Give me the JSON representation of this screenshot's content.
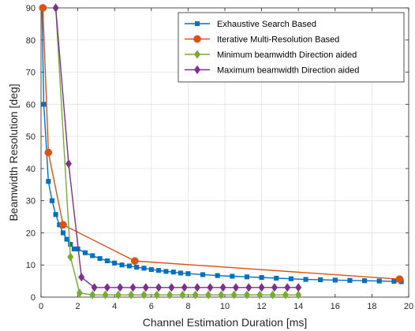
{
  "chart_data": {
    "type": "line",
    "title": "",
    "xlabel": "Channel Estimation Duration [ms]",
    "ylabel": "Beamwidth Resolution [deg]",
    "xlim": [
      0,
      20
    ],
    "ylim": [
      0,
      90
    ],
    "xticks": [
      "0",
      "2",
      "4",
      "6",
      "8",
      "10",
      "12",
      "14",
      "16",
      "18",
      "20"
    ],
    "yticks": [
      "0",
      "10",
      "20",
      "30",
      "40",
      "50",
      "60",
      "70",
      "80",
      "90"
    ],
    "grid": true,
    "legend_position": "top-right",
    "series": [
      {
        "name": "Exhaustive Search Based",
        "color": "#0072BD",
        "marker": "square",
        "x": [
          0.05,
          0.15,
          0.4,
          0.6,
          0.8,
          1.0,
          1.2,
          1.4,
          1.6,
          1.8,
          2.0,
          2.4,
          2.8,
          3.2,
          3.6,
          4.0,
          4.4,
          4.8,
          5.2,
          5.6,
          6.0,
          6.4,
          6.8,
          7.2,
          7.6,
          8.0,
          8.8,
          9.6,
          10.4,
          11.2,
          12.0,
          12.8,
          13.6,
          14.4,
          15.2,
          16.0,
          16.8,
          17.6,
          18.4,
          19.2,
          19.6
        ],
        "y": [
          90,
          60,
          36,
          30,
          25.7,
          22.5,
          20,
          18,
          16.4,
          15,
          15,
          13.8,
          12.9,
          12,
          11.3,
          10.6,
          10,
          9.7,
          9.3,
          9.0,
          8.6,
          8.3,
          8.0,
          7.8,
          7.5,
          7.3,
          7.0,
          6.7,
          6.5,
          6.3,
          6.1,
          5.9,
          5.7,
          5.5,
          5.4,
          5.3,
          5.2,
          5.1,
          5.0,
          4.9,
          4.8
        ]
      },
      {
        "name": "Iterative Multi-Resolution Based",
        "color": "#D95319",
        "marker": "circle",
        "x": [
          0.1,
          0.4,
          1.2,
          5.1,
          19.5
        ],
        "y": [
          90,
          45,
          22.5,
          11.25,
          5.6
        ]
      },
      {
        "name": "Minimum beamwidth Direction aided",
        "color": "#77AC30",
        "marker": "diamond",
        "x": [
          0.8,
          1.6,
          2.1,
          2.8,
          3.5,
          4.2,
          4.9,
          5.6,
          6.3,
          7.0,
          7.7,
          8.4,
          9.1,
          9.8,
          10.5,
          11.2,
          11.9,
          12.6,
          13.3,
          14.0
        ],
        "y": [
          90,
          12.5,
          1.3,
          0.7,
          0.7,
          0.7,
          0.7,
          0.7,
          0.7,
          0.7,
          0.7,
          0.7,
          0.7,
          0.7,
          0.7,
          0.7,
          0.7,
          0.7,
          0.7,
          0.7
        ]
      },
      {
        "name": "Maximum beamwidth Direction aided",
        "color": "#7E2F8E",
        "marker": "diamond",
        "x": [
          0.8,
          1.5,
          2.2,
          2.9,
          3.6,
          4.3,
          5.0,
          5.7,
          6.4,
          7.1,
          7.8,
          8.5,
          9.2,
          9.9,
          10.6,
          11.3,
          12.0,
          12.7,
          13.4,
          14.0
        ],
        "y": [
          90,
          41.5,
          6.2,
          3.0,
          3.0,
          3.0,
          3.0,
          3.0,
          3.0,
          3.0,
          3.0,
          3.0,
          3.0,
          3.0,
          3.0,
          3.0,
          3.0,
          3.0,
          3.0,
          3.0
        ]
      }
    ]
  }
}
